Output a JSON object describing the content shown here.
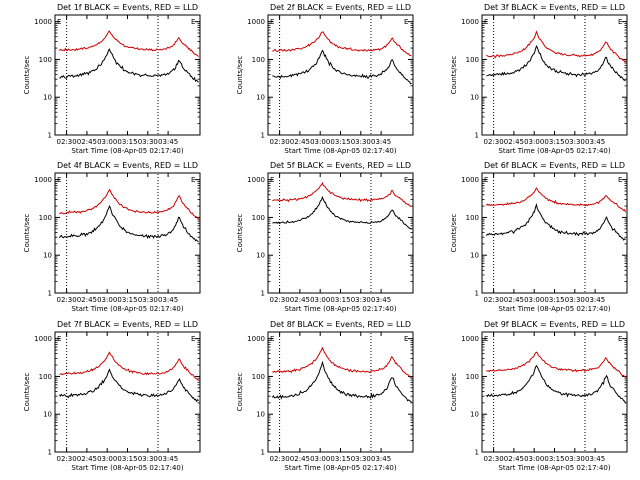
{
  "chart_data": [
    {
      "type": "line",
      "title": "Det 1f BLACK = Events, RED = LLD",
      "xlabel": "Start Time (08-Apr-05 02:17:40)",
      "ylabel": "Counts/sec",
      "x_ticks": [
        "02:30",
        "02:45",
        "03:00",
        "03:15",
        "03:30",
        "03:45"
      ],
      "y_ticks": [
        "1",
        "10",
        "100",
        "1000"
      ],
      "ylim": [
        1,
        1500
      ],
      "yscale": "log",
      "corner_marks": [
        "E",
        "E"
      ],
      "series": [
        {
          "name": "Events",
          "color": "#000000",
          "base": 35,
          "peak1": 190,
          "peak2": 100
        },
        {
          "name": "LLD",
          "color": "#cc0000",
          "base": 175,
          "peak1": 580,
          "peak2": 380
        }
      ]
    },
    {
      "type": "line",
      "title": "Det 2f BLACK = Events, RED = LLD",
      "xlabel": "Start Time (08-Apr-05 02:17:40)",
      "ylabel": "Counts/sec",
      "x_ticks": [
        "02:30",
        "02:45",
        "03:00",
        "03:15",
        "03:30",
        "03:45"
      ],
      "y_ticks": [
        "1",
        "10",
        "100",
        "1000"
      ],
      "ylim": [
        1,
        1500
      ],
      "yscale": "log",
      "corner_marks": [
        "E",
        "E"
      ],
      "series": [
        {
          "name": "Events",
          "color": "#000000",
          "base": 34,
          "peak1": 180,
          "peak2": 100
        },
        {
          "name": "LLD",
          "color": "#cc0000",
          "base": 170,
          "peak1": 560,
          "peak2": 370
        }
      ]
    },
    {
      "type": "line",
      "title": "Det 3f BLACK = Events, RED = LLD",
      "xlabel": "Start Time (08-Apr-05 02:17:40)",
      "ylabel": "Counts/sec",
      "x_ticks": [
        "02:30",
        "02:45",
        "03:00",
        "03:15",
        "03:30",
        "03:45"
      ],
      "y_ticks": [
        "1",
        "10",
        "100",
        "1000"
      ],
      "ylim": [
        1,
        1500
      ],
      "yscale": "log",
      "corner_marks": [
        "E",
        "E"
      ],
      "series": [
        {
          "name": "Events",
          "color": "#000000",
          "base": 38,
          "peak1": 220,
          "peak2": 115
        },
        {
          "name": "LLD",
          "color": "#cc0000",
          "base": 120,
          "peak1": 520,
          "peak2": 300
        }
      ]
    },
    {
      "type": "line",
      "title": "Det 4f BLACK = Events, RED = LLD",
      "xlabel": "Start Time (08-Apr-05 02:17:40)",
      "ylabel": "Counts/sec",
      "x_ticks": [
        "02:30",
        "02:45",
        "03:00",
        "03:15",
        "03:30",
        "03:45"
      ],
      "y_ticks": [
        "1",
        "10",
        "100",
        "1000"
      ],
      "ylim": [
        1,
        1500
      ],
      "yscale": "log",
      "corner_marks": [
        "E",
        "E"
      ],
      "series": [
        {
          "name": "Events",
          "color": "#000000",
          "base": 30,
          "peak1": 200,
          "peak2": 110
        },
        {
          "name": "LLD",
          "color": "#cc0000",
          "base": 130,
          "peak1": 560,
          "peak2": 400
        }
      ]
    },
    {
      "type": "line",
      "title": "Det 5f BLACK = Events, RED = LLD",
      "xlabel": "Start Time (08-Apr-05 02:17:40)",
      "ylabel": "Counts/sec",
      "x_ticks": [
        "02:30",
        "02:45",
        "03:00",
        "03:15",
        "03:30",
        "03:45"
      ],
      "y_ticks": [
        "1",
        "10",
        "100",
        "1000"
      ],
      "ylim": [
        1,
        1500
      ],
      "yscale": "log",
      "corner_marks": [
        "E",
        "E"
      ],
      "series": [
        {
          "name": "Events",
          "color": "#000000",
          "base": 70,
          "peak1": 350,
          "peak2": 165
        },
        {
          "name": "LLD",
          "color": "#cc0000",
          "base": 280,
          "peak1": 800,
          "peak2": 500
        }
      ]
    },
    {
      "type": "line",
      "title": "Det 6f BLACK = Events, RED = LLD",
      "xlabel": "Start Time (08-Apr-05 02:17:40)",
      "ylabel": "Counts/sec",
      "x_ticks": [
        "02:30",
        "02:45",
        "03:00",
        "03:15",
        "03:30",
        "03:45"
      ],
      "y_ticks": [
        "1",
        "10",
        "100",
        "1000"
      ],
      "ylim": [
        1,
        1500
      ],
      "yscale": "log",
      "corner_marks": [
        "E",
        "E"
      ],
      "series": [
        {
          "name": "Events",
          "color": "#000000",
          "base": 35,
          "peak1": 210,
          "peak2": 100
        },
        {
          "name": "LLD",
          "color": "#cc0000",
          "base": 210,
          "peak1": 600,
          "peak2": 380
        }
      ]
    },
    {
      "type": "line",
      "title": "Det 7f BLACK = Events, RED = LLD",
      "xlabel": "Start Time (08-Apr-05 02:17:40)",
      "ylabel": "Counts/sec",
      "x_ticks": [
        "02:30",
        "02:45",
        "03:00",
        "03:15",
        "03:30",
        "03:45"
      ],
      "y_ticks": [
        "1",
        "10",
        "100",
        "1000"
      ],
      "ylim": [
        1,
        1500
      ],
      "yscale": "log",
      "corner_marks": [
        "E",
        "E"
      ],
      "series": [
        {
          "name": "Events",
          "color": "#000000",
          "base": 30,
          "peak1": 150,
          "peak2": 90
        },
        {
          "name": "LLD",
          "color": "#cc0000",
          "base": 115,
          "peak1": 440,
          "peak2": 300
        }
      ]
    },
    {
      "type": "line",
      "title": "Det 8f BLACK = Events, RED = LLD",
      "xlabel": "Start Time (08-Apr-05 02:17:40)",
      "ylabel": "Counts/sec",
      "x_ticks": [
        "02:30",
        "02:45",
        "03:00",
        "03:15",
        "03:30",
        "03:45"
      ],
      "y_ticks": [
        "1",
        "10",
        "100",
        "1000"
      ],
      "ylim": [
        1,
        1500
      ],
      "yscale": "log",
      "corner_marks": [
        "E",
        "E"
      ],
      "series": [
        {
          "name": "Events",
          "color": "#000000",
          "base": 28,
          "peak1": 220,
          "peak2": 105
        },
        {
          "name": "LLD",
          "color": "#cc0000",
          "base": 130,
          "peak1": 560,
          "peak2": 350
        }
      ]
    },
    {
      "type": "line",
      "title": "Det 9f BLACK = Events, RED = LLD",
      "xlabel": "Start Time (08-Apr-05 02:17:40)",
      "ylabel": "Counts/sec",
      "x_ticks": [
        "02:30",
        "02:45",
        "03:00",
        "03:15",
        "03:30",
        "03:45"
      ],
      "y_ticks": [
        "1",
        "10",
        "100",
        "1000"
      ],
      "ylim": [
        1,
        1500
      ],
      "yscale": "log",
      "corner_marks": [
        "E",
        "E"
      ],
      "series": [
        {
          "name": "Events",
          "color": "#000000",
          "base": 30,
          "peak1": 200,
          "peak2": 110
        },
        {
          "name": "LLD",
          "color": "#cc0000",
          "base": 140,
          "peak1": 460,
          "peak2": 320
        }
      ]
    }
  ]
}
